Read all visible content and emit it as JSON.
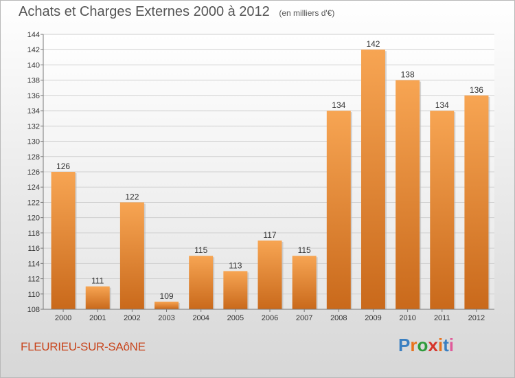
{
  "header": {
    "title": "Achats et Charges Externes 2000 à 2012",
    "subtitle": "(en milliers d'€)"
  },
  "footer": {
    "place": "FLEURIEU-SUR-SAôNE",
    "logo": "Proxiti",
    "logo_colors": [
      "#3a7fc1",
      "#e8721c",
      "#2e9b3c",
      "#d6332a",
      "#e8721c",
      "#3a7fc1",
      "#e05a9a"
    ]
  },
  "chart_data": {
    "type": "bar",
    "title": "Achats et Charges Externes 2000 à 2012",
    "subtitle": "(en milliers d'€)",
    "categories": [
      "2000",
      "2001",
      "2002",
      "2003",
      "2004",
      "2005",
      "2006",
      "2007",
      "2008",
      "2009",
      "2010",
      "2011",
      "2012"
    ],
    "values": [
      126,
      111,
      122,
      109,
      115,
      113,
      117,
      115,
      134,
      142,
      138,
      134,
      136
    ],
    "ylim": [
      108,
      144
    ],
    "yticks": [
      108,
      110,
      112,
      114,
      116,
      118,
      120,
      122,
      124,
      126,
      128,
      130,
      132,
      134,
      136,
      138,
      140,
      142,
      144
    ],
    "grid": true,
    "bar_color": "#f29d48",
    "bar_color_dark": "#c9691b"
  }
}
